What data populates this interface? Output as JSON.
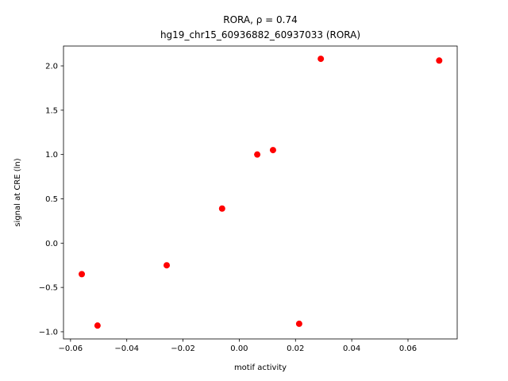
{
  "chart_data": {
    "type": "scatter",
    "title": "RORA, ρ = 0.74",
    "subtitle": "hg19_chr15_60936882_60937033 (RORA)",
    "x_label": "motif activity",
    "y_label": "signal at CRE (ln)",
    "series": [
      {
        "color": "#ff0000",
        "x": [
          -0.056,
          -0.0504,
          -0.0258,
          -0.0061,
          0.0064,
          0.012,
          0.0213,
          0.029,
          0.0711
        ],
        "values": [
          -0.35,
          -0.93,
          -0.25,
          0.39,
          1.0,
          1.05,
          -0.91,
          2.08,
          2.06
        ]
      }
    ],
    "xlim": [
      -0.0625,
      0.0775
    ],
    "ylim": [
      -1.081,
      2.224
    ],
    "xticks": [
      {
        "value": -0.06,
        "label": "−0.06"
      },
      {
        "value": -0.04,
        "label": "−0.04"
      },
      {
        "value": -0.02,
        "label": "−0.02"
      },
      {
        "value": 0,
        "label": "0.00"
      },
      {
        "value": 0.02,
        "label": "0.02"
      },
      {
        "value": 0.04,
        "label": "0.04"
      },
      {
        "value": 0.06,
        "label": "0.06"
      }
    ],
    "yticks": [
      {
        "value": -1,
        "label": "−1.0"
      },
      {
        "value": -0.5,
        "label": "−0.5"
      },
      {
        "value": 0,
        "label": "0.0"
      },
      {
        "value": 0.5,
        "label": "0.5"
      },
      {
        "value": 1,
        "label": "1.0"
      },
      {
        "value": 1.5,
        "label": "1.5"
      },
      {
        "value": 2,
        "label": "2.0"
      }
    ]
  }
}
